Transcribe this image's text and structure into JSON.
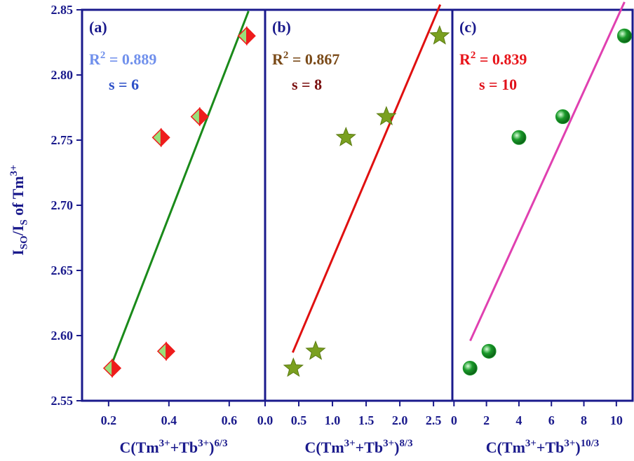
{
  "chart_data": [
    {
      "type": "scatter",
      "panel_label": "(a)",
      "ylabel_parts": [
        {
          "text": "I"
        },
        {
          "text": "SO",
          "shift": "sub"
        },
        {
          "text": "/I"
        },
        {
          "text": "S",
          "shift": "sub"
        },
        {
          "text": " of Tm"
        },
        {
          "text": "3+",
          "shift": "sup"
        }
      ],
      "xlabel_parts": [
        {
          "text": "C(Tm"
        },
        {
          "text": "3+",
          "shift": "sup"
        },
        {
          "text": "+Tb"
        },
        {
          "text": "3+",
          "shift": "sup"
        },
        {
          "text": ")"
        },
        {
          "text": "6/3",
          "shift": "sup"
        }
      ],
      "r2_parts": [
        {
          "text": "R"
        },
        {
          "text": "2",
          "shift": "sup"
        },
        {
          "text": " = 0.889"
        }
      ],
      "r2_color": "#7090ec",
      "s_label": "s = 6",
      "s_color": "#2d50c8",
      "x": [
        0.212,
        0.391,
        0.374,
        0.502,
        0.658
      ],
      "values": [
        2.575,
        2.588,
        2.752,
        2.768,
        2.83
      ],
      "marker": "diamond",
      "color": "#ee1c1c",
      "color2": "#98e07a",
      "fit": {
        "x": [
          0.212,
          0.664
        ],
        "y": [
          2.579,
          2.849
        ],
        "color": "#1a8a1a"
      },
      "xlim": [
        0.112,
        0.719
      ],
      "xticks": [
        0.2,
        0.4,
        0.6
      ],
      "ylim": [
        2.55,
        2.85
      ],
      "yticks": [
        {
          "value": 2.55,
          "label": "2.55"
        },
        {
          "value": 2.6,
          "label": "2.60"
        },
        {
          "value": 2.65,
          "label": "2.65"
        },
        {
          "value": 2.7,
          "label": "2.70"
        },
        {
          "value": 2.75,
          "label": "2.75"
        },
        {
          "value": 2.8,
          "label": "2.80"
        },
        {
          "value": 2.85,
          "label": "2.85"
        }
      ]
    },
    {
      "type": "scatter",
      "panel_label": "(b)",
      "xlabel_parts": [
        {
          "text": "C(Tm"
        },
        {
          "text": "3+",
          "shift": "sup"
        },
        {
          "text": "+Tb"
        },
        {
          "text": "3+",
          "shift": "sup"
        },
        {
          "text": ")"
        },
        {
          "text": "8/3",
          "shift": "sup"
        }
      ],
      "r2_parts": [
        {
          "text": "R"
        },
        {
          "text": "2",
          "shift": "sup"
        },
        {
          "text": " = 0.867"
        }
      ],
      "r2_color": "#7a4a18",
      "s_label": "s = 8",
      "s_color": "#7a1010",
      "x": [
        0.42,
        0.75,
        1.2,
        1.8,
        2.59
      ],
      "values": [
        2.575,
        2.588,
        2.752,
        2.768,
        2.83
      ],
      "marker": "star",
      "color": "#7aa020",
      "fit": {
        "x": [
          0.41,
          2.6
        ],
        "y": [
          2.587,
          2.854
        ],
        "color": "#e01010"
      },
      "xlim": [
        0,
        2.78
      ],
      "xticks": [
        {
          "value": 0,
          "label": "0.0"
        },
        0.5,
        {
          "value": 1,
          "label": "1.0"
        },
        1.5,
        {
          "value": 2,
          "label": "2.0"
        },
        2.5
      ],
      "ylim": [
        2.55,
        2.85
      ]
    },
    {
      "type": "scatter",
      "panel_label": "(c)",
      "xlabel_parts": [
        {
          "text": "C(Tm"
        },
        {
          "text": "3+",
          "shift": "sup"
        },
        {
          "text": "+Tb"
        },
        {
          "text": "3+",
          "shift": "sup"
        },
        {
          "text": ")"
        },
        {
          "text": "10/3",
          "shift": "sup"
        }
      ],
      "r2_parts": [
        {
          "text": "R"
        },
        {
          "text": "2",
          "shift": "sup"
        },
        {
          "text": " = 0.839"
        }
      ],
      "r2_color": "#e8141a",
      "s_label": "s = 10",
      "s_color": "#e0101a",
      "x": [
        0.99,
        2.15,
        4.0,
        6.7,
        10.5
      ],
      "values": [
        2.575,
        2.588,
        2.752,
        2.768,
        2.83
      ],
      "marker": "sphere",
      "color": "#1a9a2a",
      "fit": {
        "x": [
          1.0,
          10.5
        ],
        "y": [
          2.596,
          2.856
        ],
        "color": "#e040b0"
      },
      "xlim": [
        -0.1,
        11.0
      ],
      "xticks": [
        0,
        2,
        4,
        6,
        8,
        10
      ],
      "ylim": [
        2.55,
        2.85
      ]
    }
  ]
}
